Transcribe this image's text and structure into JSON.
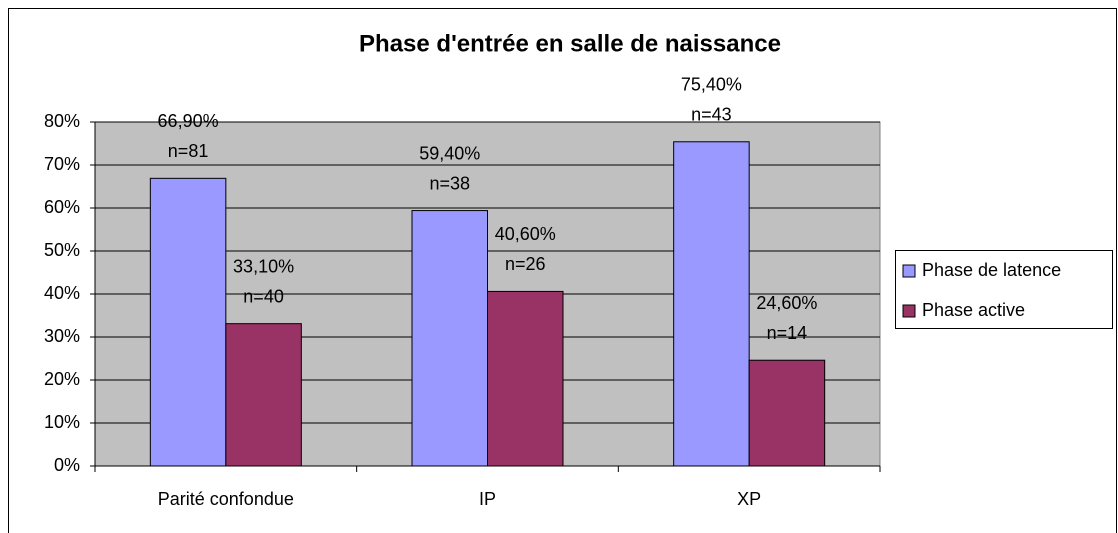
{
  "chart_data": {
    "type": "bar",
    "title": "Phase d'entrée en salle de naissance",
    "categories": [
      "Parité confondue",
      "IP",
      "XP"
    ],
    "series": [
      {
        "name": "Phase de latence",
        "color": "#9999ff",
        "values": [
          66.9,
          59.4,
          75.4
        ],
        "value_labels": [
          "66,90%",
          "59,40%",
          "75,40%"
        ],
        "n_labels": [
          "n=81",
          "n=38",
          "n=43"
        ]
      },
      {
        "name": "Phase active",
        "color": "#993366",
        "values": [
          33.1,
          40.6,
          24.6
        ],
        "value_labels": [
          "33,10%",
          "40,60%",
          "24,60%"
        ],
        "n_labels": [
          "n=40",
          "n=26",
          "n=14"
        ]
      }
    ],
    "ylim": [
      0,
      80
    ],
    "yticks": [
      {
        "value": 0,
        "label": "0%"
      },
      {
        "value": 10,
        "label": "10%"
      },
      {
        "value": 20,
        "label": "20%"
      },
      {
        "value": 30,
        "label": "30%"
      },
      {
        "value": 40,
        "label": "40%"
      },
      {
        "value": 50,
        "label": "50%"
      },
      {
        "value": 60,
        "label": "60%"
      },
      {
        "value": 70,
        "label": "70%"
      },
      {
        "value": 80,
        "label": "80%"
      }
    ],
    "grid": true,
    "plot_background": "#c0c0c0",
    "legend": "right"
  }
}
